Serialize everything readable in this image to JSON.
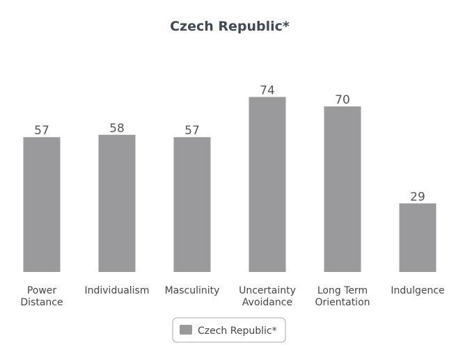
{
  "chart_data": {
    "type": "bar",
    "title": "Czech Republic*",
    "categories": [
      [
        "Power",
        "Distance"
      ],
      [
        "Individualism"
      ],
      [
        "Masculinity"
      ],
      [
        "Uncertainty",
        "Avoidance"
      ],
      [
        "Long Term",
        "Orientation"
      ],
      [
        "Indulgence"
      ]
    ],
    "series": [
      {
        "name": "Czech Republic*",
        "values": [
          57,
          58,
          57,
          74,
          70,
          29
        ],
        "color": "#9a999b"
      }
    ],
    "ylim": [
      0,
      100
    ],
    "grid": false,
    "legend": "bottom-center"
  }
}
